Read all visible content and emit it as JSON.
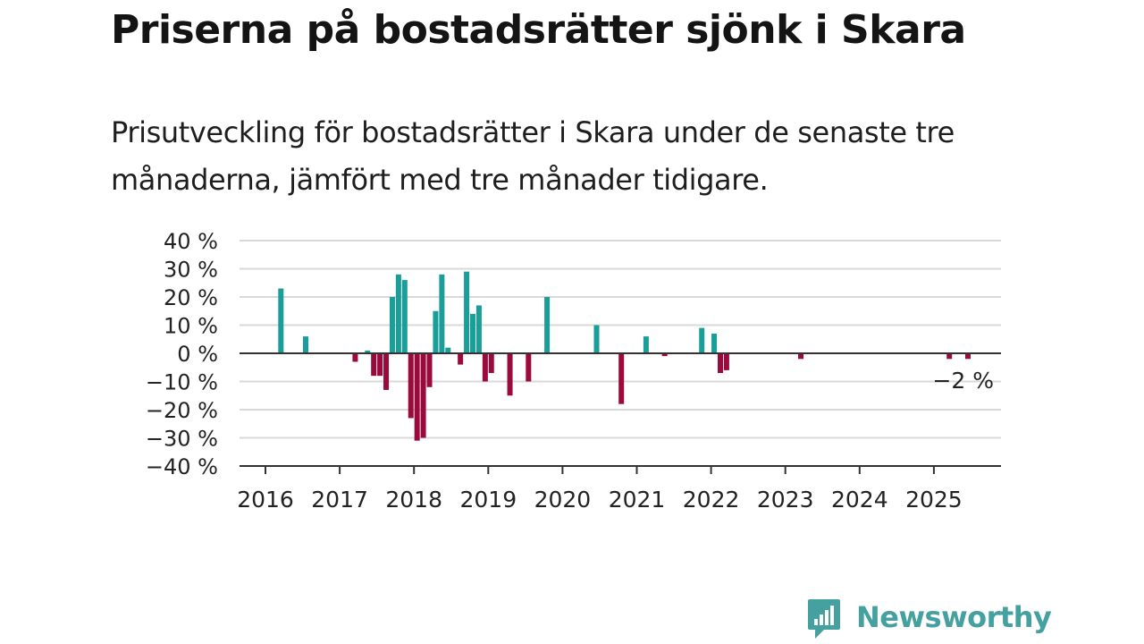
{
  "title": "Priserna på bostadsrätter sjönk i Skara",
  "subtitle": "Prisutveckling för bostadsrätter i Skara under de senaste tre månaderna, jämfört med tre månader tidigare.",
  "logo_text": "Newsworthy",
  "colors": {
    "positive": "#1a9e9a",
    "negative": "#9b0a3c",
    "grid": "#d9d9d9",
    "axis": "#333333",
    "brand": "#45a0a0"
  },
  "chart_data": {
    "type": "bar",
    "title": "Priserna på bostadsrätter sjönk i Skara",
    "subtitle": "Prisutveckling för bostadsrätter i Skara under de senaste tre månaderna, jämfört med tre månader tidigare.",
    "xlabel": "",
    "ylabel": "",
    "ylim": [
      -40,
      40
    ],
    "y_ticks": [
      40,
      30,
      20,
      10,
      0,
      -10,
      -20,
      -30,
      -40
    ],
    "y_tick_labels": [
      "40 %",
      "30 %",
      "20 %",
      "10 %",
      "0 %",
      "−10 %",
      "−20 %",
      "−30 %",
      "−40 %"
    ],
    "x_ticks": [
      "2016",
      "2017",
      "2018",
      "2019",
      "2020",
      "2021",
      "2022",
      "2023",
      "2024",
      "2025"
    ],
    "grid": true,
    "annotation": "−2 %",
    "series": [
      {
        "x": [
          "2016-03",
          "2016-07",
          "2017-03",
          "2017-05",
          "2017-06",
          "2017-07",
          "2017-08",
          "2017-09",
          "2017-10",
          "2017-11",
          "2017-12",
          "2018-01",
          "2018-02",
          "2018-03",
          "2018-04",
          "2018-05",
          "2018-06",
          "2018-08",
          "2018-09",
          "2018-10",
          "2018-11",
          "2018-12",
          "2019-01",
          "2019-04",
          "2019-07",
          "2019-10",
          "2020-06",
          "2020-10",
          "2021-02",
          "2021-05",
          "2021-11",
          "2022-01",
          "2022-02",
          "2022-03",
          "2023-03",
          "2025-03",
          "2025-06"
        ],
        "values": [
          23,
          6,
          -3,
          1,
          -8,
          -8,
          -13,
          20,
          28,
          26,
          -23,
          -31,
          -30,
          -12,
          15,
          28,
          2,
          -4,
          29,
          14,
          17,
          -10,
          -7,
          -15,
          -10,
          20,
          10,
          -18,
          6,
          -1,
          9,
          7,
          -7,
          -6,
          -2,
          -2,
          -2
        ]
      }
    ]
  }
}
